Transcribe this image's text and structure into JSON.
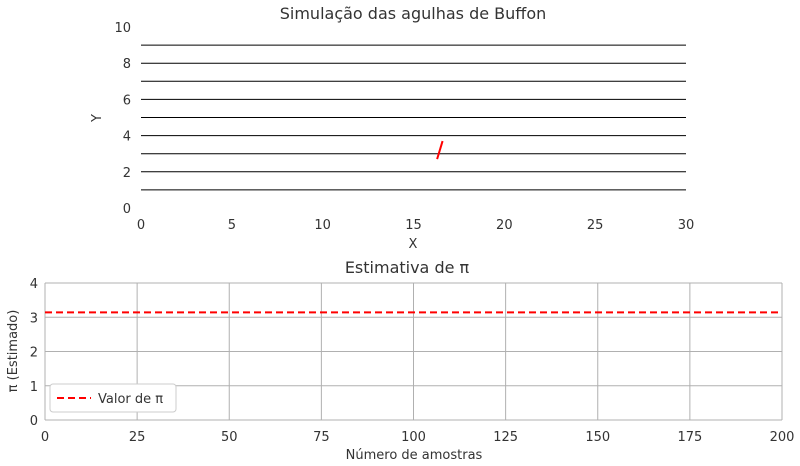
{
  "chart_data": [
    {
      "type": "line",
      "title": "Simulação das agulhas de Buffon",
      "xlabel": "X",
      "ylabel": "Y",
      "xlim": [
        0,
        30
      ],
      "ylim": [
        0,
        10
      ],
      "xticks": [
        "0",
        "5",
        "10",
        "15",
        "20",
        "25",
        "30"
      ],
      "yticks": [
        "0",
        "2",
        "4",
        "6",
        "8",
        "10"
      ],
      "grid": false,
      "series": [
        {
          "role": "parallel lines",
          "color": "#000000",
          "y_values": [
            1,
            2,
            3,
            4,
            5,
            6,
            7,
            8,
            9
          ],
          "x_range": [
            0,
            30
          ]
        },
        {
          "role": "needle",
          "color": "#ff0000",
          "x": [
            16.3,
            16.6
          ],
          "y": [
            2.7,
            3.7
          ]
        }
      ]
    },
    {
      "type": "line",
      "title": "Estimativa de π",
      "xlabel": "Número de amostras",
      "ylabel": "π (Estimado)",
      "xlim": [
        0,
        200
      ],
      "ylim": [
        0,
        4
      ],
      "xticks": [
        "0",
        "25",
        "50",
        "75",
        "100",
        "125",
        "150",
        "175",
        "200"
      ],
      "yticks": [
        "0",
        "1",
        "2",
        "3",
        "4"
      ],
      "grid": true,
      "legend_position": "lower-left",
      "series": [
        {
          "name": "Valor de π",
          "style": "dashed",
          "color": "#ff0000",
          "y_constant": 3.14159
        }
      ]
    }
  ]
}
